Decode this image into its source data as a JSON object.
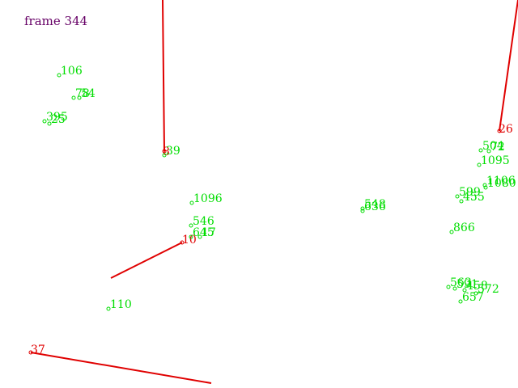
{
  "frame_label": "frame 344",
  "colors": {
    "active": "#e00000",
    "point": "#00dd00",
    "frame_text": "#660066",
    "background": "#ffffff"
  },
  "active_tracks": [
    {
      "id": "8"
    },
    {
      "id": "26"
    },
    {
      "id": "10"
    },
    {
      "id": "37"
    }
  ],
  "points": [
    {
      "id": "106"
    },
    {
      "id": "78"
    },
    {
      "id": "54"
    },
    {
      "id": "395"
    },
    {
      "id": "25"
    },
    {
      "id": "39"
    },
    {
      "id": "1096"
    },
    {
      "id": "546"
    },
    {
      "id": "645"
    },
    {
      "id": "17"
    },
    {
      "id": "110"
    },
    {
      "id": "548"
    },
    {
      "id": "636"
    },
    {
      "id": "504"
    },
    {
      "id": "72"
    },
    {
      "id": "1095"
    },
    {
      "id": "1106"
    },
    {
      "id": "1080"
    },
    {
      "id": "599"
    },
    {
      "id": "455"
    },
    {
      "id": "866"
    },
    {
      "id": "563"
    },
    {
      "id": "591"
    },
    {
      "id": "458"
    },
    {
      "id": "572"
    },
    {
      "id": "657"
    }
  ]
}
